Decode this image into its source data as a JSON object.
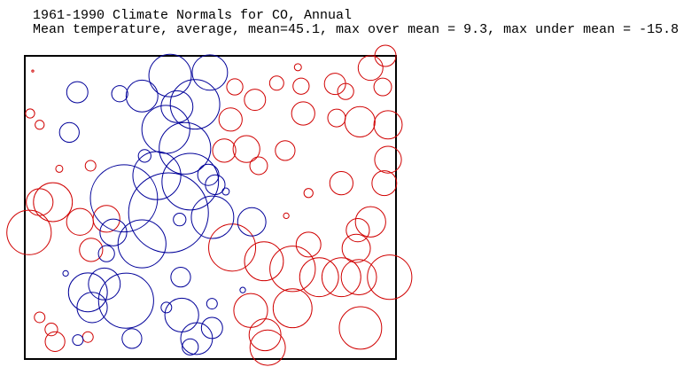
{
  "chart_data": {
    "type": "bubble",
    "title": "1961-1990 Climate Normals for CO, Annual",
    "subtitle": "Mean temperature, average, mean=45.1, max over mean = 9.3, max under mean = -15.8",
    "xlim": [
      -109.05,
      -102.05
    ],
    "ylim": [
      37,
      41
    ],
    "series": [
      {
        "color": "#d00000",
        "x": [
          -102.53,
          -102.25,
          -102.3,
          -103.2,
          -103.0,
          -103.84,
          -104.3,
          -103.9,
          -105.09,
          -104.71,
          -103.8,
          -103.17,
          -102.73,
          -102.2,
          -105.17,
          -105.29,
          -104.87,
          -104.14,
          -104.64,
          -107.81,
          -108.4,
          -102.2,
          -103.08,
          -102.27,
          -102.53,
          -102.77,
          -103.7,
          -104.12,
          -108.77,
          -108.52,
          -108.01,
          -108.97,
          -107.51,
          -107.8,
          -105.14,
          -104.54,
          -103.7,
          -104.0,
          -102.8,
          -103.5,
          -103.08,
          -102.75,
          -102.17,
          -104.79,
          -104.0,
          -102.72,
          -104.52,
          -104.47,
          -108.77,
          -108.55,
          -108.48,
          -107.86,
          -108.95,
          -108.77,
          -108.9
        ],
        "y": [
          40.84,
          41.0,
          40.59,
          40.63,
          40.53,
          40.6,
          40.64,
          40.85,
          40.59,
          40.42,
          40.24,
          40.18,
          40.13,
          40.09,
          40.16,
          39.75,
          39.77,
          39.75,
          39.55,
          39.55,
          39.51,
          39.63,
          39.32,
          39.32,
          38.81,
          38.7,
          39.19,
          38.89,
          39.07,
          39.07,
          38.81,
          38.67,
          38.85,
          38.44,
          38.47,
          38.29,
          38.51,
          38.19,
          38.46,
          38.08,
          38.08,
          38.08,
          38.08,
          37.64,
          37.67,
          37.41,
          37.32,
          37.15,
          37.55,
          37.39,
          37.23,
          37.29,
          40.24,
          40.09,
          40.8
        ],
        "values": [
          4.9,
          4.2,
          3.5,
          4.2,
          3.2,
          3.2,
          2.8,
          1.4,
          3.2,
          4.2,
          4.6,
          3.5,
          6.0,
          5.6,
          4.6,
          4.6,
          5.3,
          3.9,
          3.5,
          2.1,
          1.4,
          5.3,
          4.6,
          4.9,
          6.0,
          4.6,
          1.8,
          1.1,
          5.3,
          7.7,
          5.3,
          8.8,
          5.3,
          4.6,
          9.3,
          7.7,
          4.9,
          9.0,
          5.6,
          7.7,
          7.7,
          7.0,
          8.8,
          6.7,
          7.7,
          8.4,
          6.3,
          7.0,
          2.1,
          2.5,
          3.9,
          2.1,
          1.8,
          1.8,
          0.4
        ]
      },
      {
        "color": "#000099",
        "x": [
          -106.31,
          -105.56,
          -108.06,
          -107.26,
          -106.84,
          -106.18,
          -105.84,
          -106.39,
          -108.21,
          -106.03,
          -106.79,
          -106.56,
          -105.59,
          -105.46,
          -105.93,
          -107.18,
          -106.34,
          -106.84,
          -105.51,
          -104.77,
          -107.38,
          -106.13,
          -107.51,
          -108.28,
          -107.86,
          -107.55,
          -107.14,
          -106.11,
          -107.78,
          -105.52,
          -106.38,
          -106.09,
          -105.52,
          -105.81,
          -107.03,
          -108.05,
          -105.93,
          -104.94,
          -105.26
        ],
        "y": [
          40.74,
          40.78,
          40.52,
          40.5,
          40.47,
          40.33,
          40.36,
          40.03,
          39.99,
          39.78,
          39.68,
          39.42,
          39.43,
          39.3,
          39.34,
          39.12,
          38.93,
          38.52,
          38.87,
          38.81,
          38.67,
          38.84,
          38.39,
          38.13,
          37.88,
          37.99,
          37.77,
          38.08,
          37.68,
          37.73,
          37.68,
          37.58,
          37.41,
          37.27,
          37.27,
          37.25,
          37.16,
          37.91,
          39.21
        ],
        "values": [
          -8.4,
          -7.0,
          -4.2,
          -3.2,
          -6.3,
          -6.3,
          -9.8,
          -9.5,
          -3.9,
          -10.2,
          -2.5,
          -9.5,
          -4.2,
          -3.9,
          -11.2,
          -13.3,
          -15.8,
          -9.5,
          -8.4,
          -5.6,
          -5.3,
          -2.5,
          -3.2,
          -1.1,
          -7.7,
          -6.3,
          -10.9,
          -3.9,
          -6.0,
          -2.1,
          -2.1,
          -6.7,
          -4.2,
          -6.3,
          -3.9,
          -2.1,
          -3.2,
          -1.1,
          -1.4
        ]
      }
    ]
  }
}
